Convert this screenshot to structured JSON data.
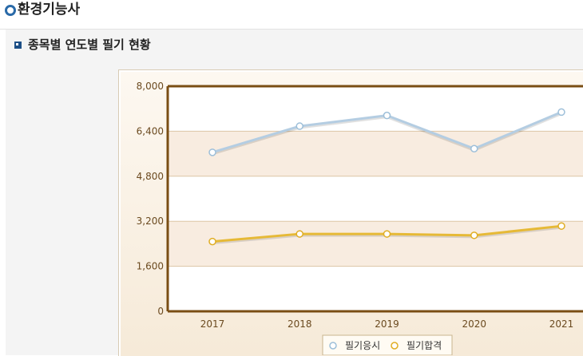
{
  "header": {
    "title": "환경기능사"
  },
  "section": {
    "title": "종목별 연도별 필기 현황"
  },
  "chart_data": {
    "type": "line",
    "title": "",
    "xlabel": "",
    "ylabel": "",
    "categories": [
      "2017",
      "2018",
      "2019",
      "2020",
      "2021"
    ],
    "ylim": [
      0,
      8000
    ],
    "yticks": [
      0,
      1600,
      3200,
      4800,
      6400,
      8000
    ],
    "ytick_labels": [
      "0",
      "1,600",
      "3,200",
      "4,800",
      "6,400",
      "8,000"
    ],
    "grid": true,
    "legend_position": "bottom",
    "series": [
      {
        "name": "필기응시",
        "values": [
          5650,
          6580,
          6960,
          5780,
          7080
        ],
        "color": "#b4cde2",
        "marker": "#9dbfd9"
      },
      {
        "name": "필기합격",
        "values": [
          2480,
          2750,
          2750,
          2700,
          3030
        ],
        "color": "#e6b936",
        "marker": "#e0ad23"
      }
    ]
  }
}
